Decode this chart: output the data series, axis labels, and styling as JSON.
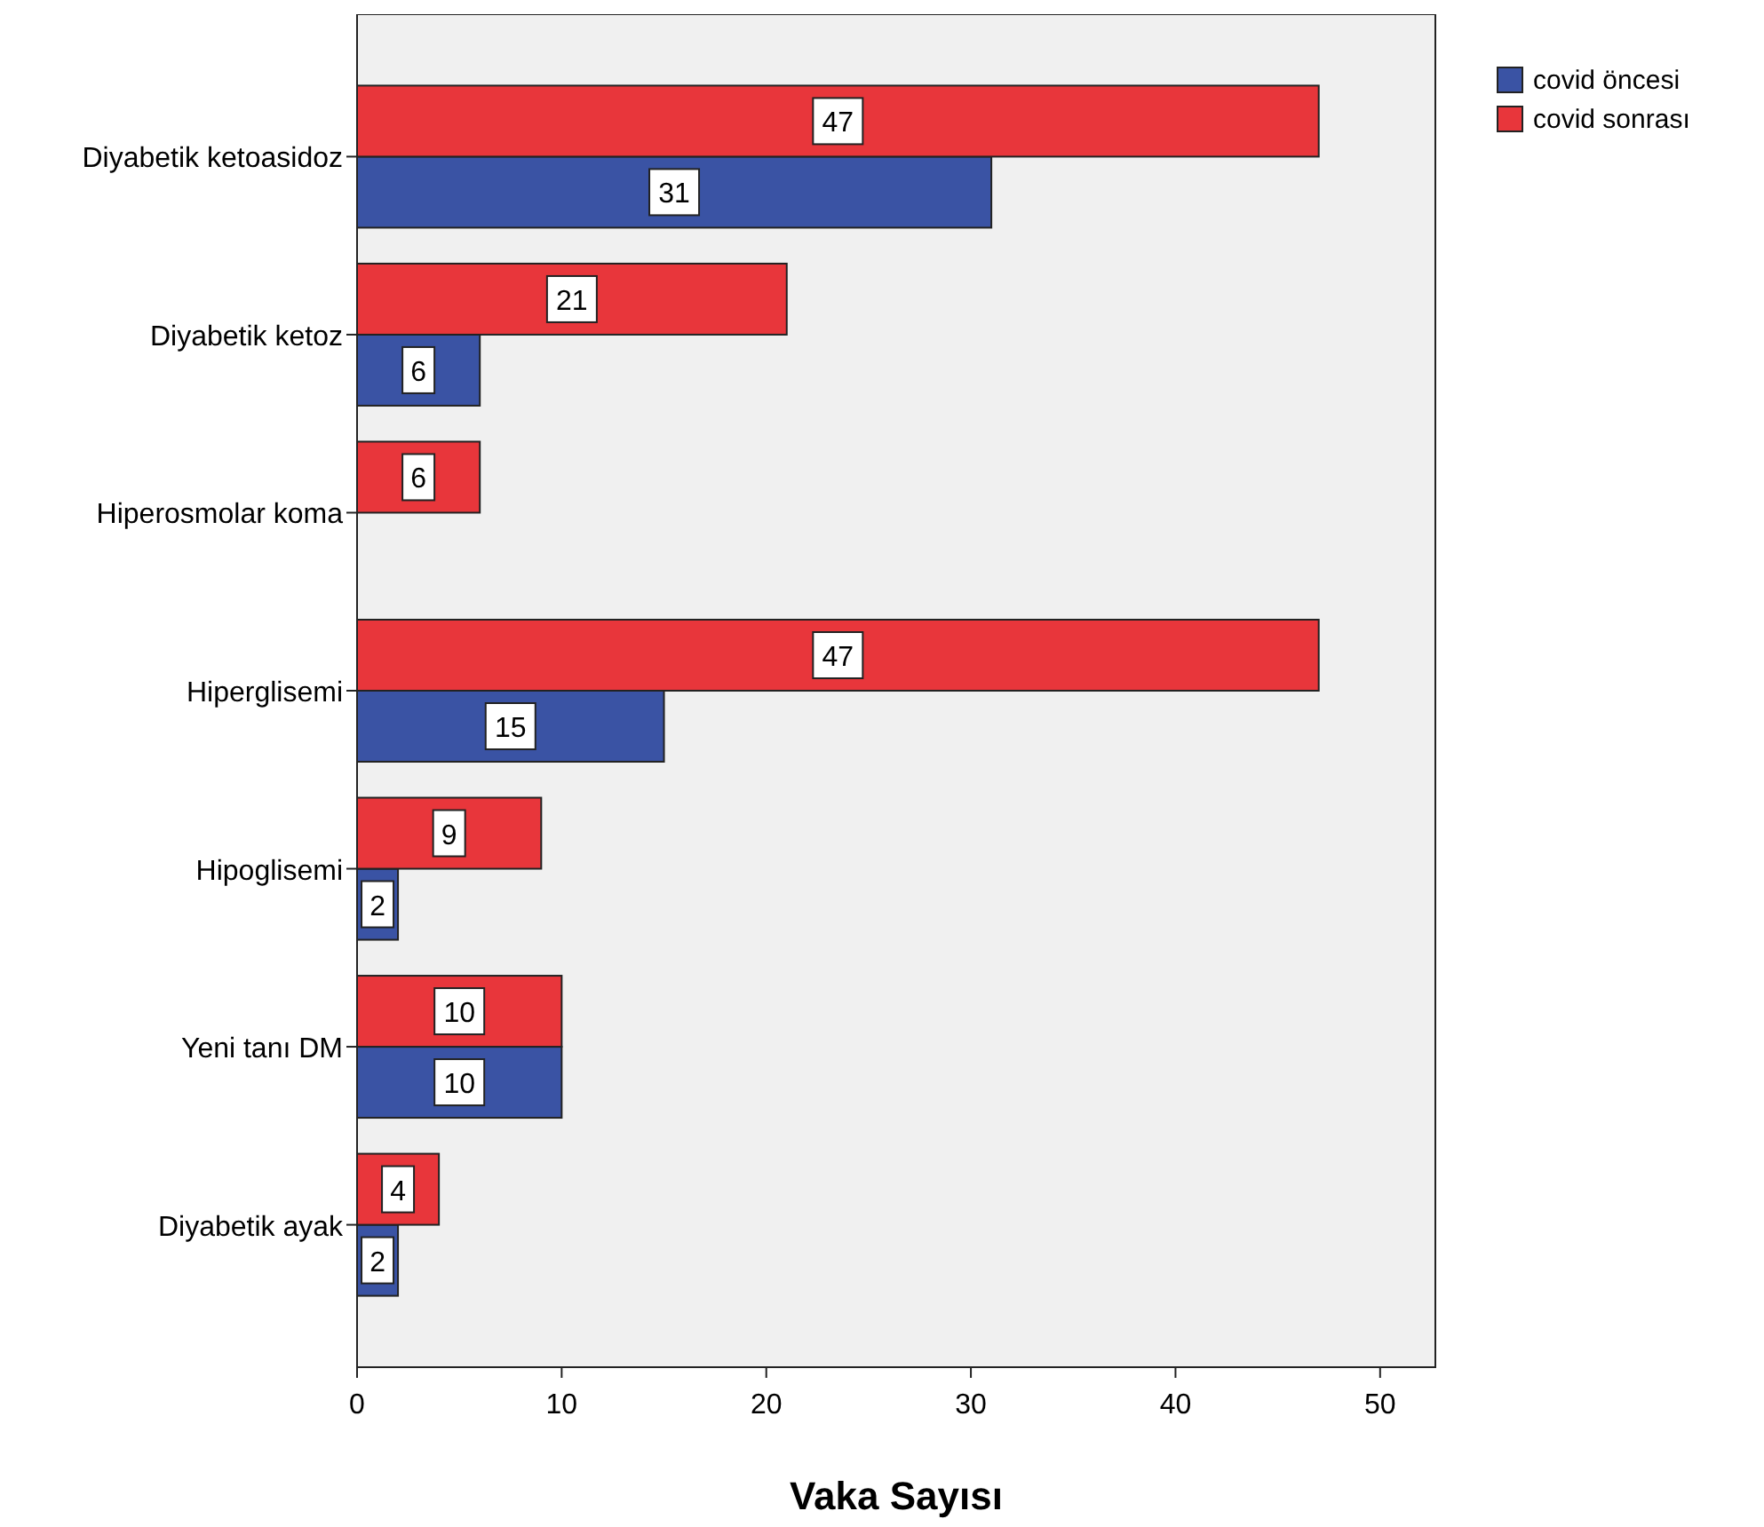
{
  "chart_data": {
    "type": "bar",
    "orientation": "horizontal",
    "xlabel": "Vaka Sayısı",
    "categories": [
      "Diyabetik ketoasidoz",
      "Diyabetik ketoz",
      "Hiperosmolar koma",
      "Hiperglisemi",
      "Hipoglisemi",
      "Yeni tanı DM",
      "Diyabetik ayak"
    ],
    "series": [
      {
        "name": "covid öncesi",
        "color": "#3a53a4",
        "values": [
          31,
          6,
          null,
          15,
          2,
          10,
          2
        ]
      },
      {
        "name": "covid sonrası",
        "color": "#e8363b",
        "values": [
          47,
          21,
          6,
          47,
          9,
          10,
          4
        ]
      }
    ],
    "xlim": [
      0,
      52.7
    ],
    "xticks": [
      0,
      10,
      20,
      30,
      40,
      50
    ],
    "data_labels": true,
    "legend": "top right",
    "grid": false
  }
}
